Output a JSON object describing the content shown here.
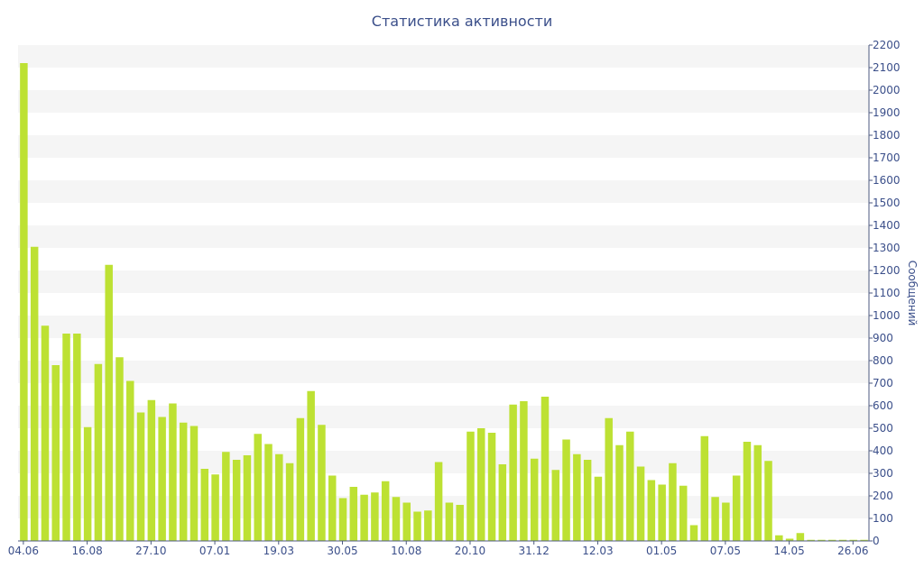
{
  "colors": {
    "bar": "#bde133",
    "band": "#f5f5f5",
    "axis": "#4d5a80",
    "text": "#3b4f8a"
  },
  "chart_data": {
    "type": "bar",
    "title": "Статистика активности",
    "ylabel": "Сообщений",
    "xlabel": "",
    "ylim": [
      0,
      2200
    ],
    "y_ticks": [
      0,
      100,
      200,
      300,
      400,
      500,
      600,
      700,
      800,
      900,
      1000,
      1100,
      1200,
      1300,
      1400,
      1500,
      1600,
      1700,
      1800,
      1900,
      2000,
      2100,
      2200
    ],
    "y_axis_side": "right",
    "grid": "alternating horizontal bands",
    "legend": "none",
    "x_tick_labels": [
      {
        "label": "04.06",
        "index": 0
      },
      {
        "label": "16.08",
        "index": 6
      },
      {
        "label": "27.10",
        "index": 12
      },
      {
        "label": "07.01",
        "index": 18
      },
      {
        "label": "19.03",
        "index": 24
      },
      {
        "label": "30.05",
        "index": 30
      },
      {
        "label": "10.08",
        "index": 36
      },
      {
        "label": "20.10",
        "index": 42
      },
      {
        "label": "31.12",
        "index": 48
      },
      {
        "label": "12.03",
        "index": 54
      },
      {
        "label": "01.05",
        "index": 60
      },
      {
        "label": "07.05",
        "index": 66
      },
      {
        "label": "14.05",
        "index": 72
      },
      {
        "label": "26.06",
        "index": 78
      }
    ],
    "values": [
      2120,
      1305,
      955,
      780,
      920,
      920,
      505,
      785,
      1225,
      815,
      710,
      570,
      625,
      550,
      610,
      525,
      510,
      320,
      295,
      395,
      360,
      380,
      475,
      430,
      385,
      345,
      545,
      665,
      515,
      290,
      190,
      240,
      205,
      215,
      265,
      195,
      170,
      130,
      135,
      350,
      170,
      160,
      485,
      500,
      480,
      340,
      605,
      620,
      365,
      640,
      315,
      450,
      385,
      360,
      285,
      545,
      425,
      485,
      330,
      270,
      250,
      345,
      245,
      70,
      465,
      195,
      170,
      290,
      440,
      425,
      355,
      25,
      10,
      35,
      5,
      5,
      5,
      5,
      5,
      5
    ]
  }
}
